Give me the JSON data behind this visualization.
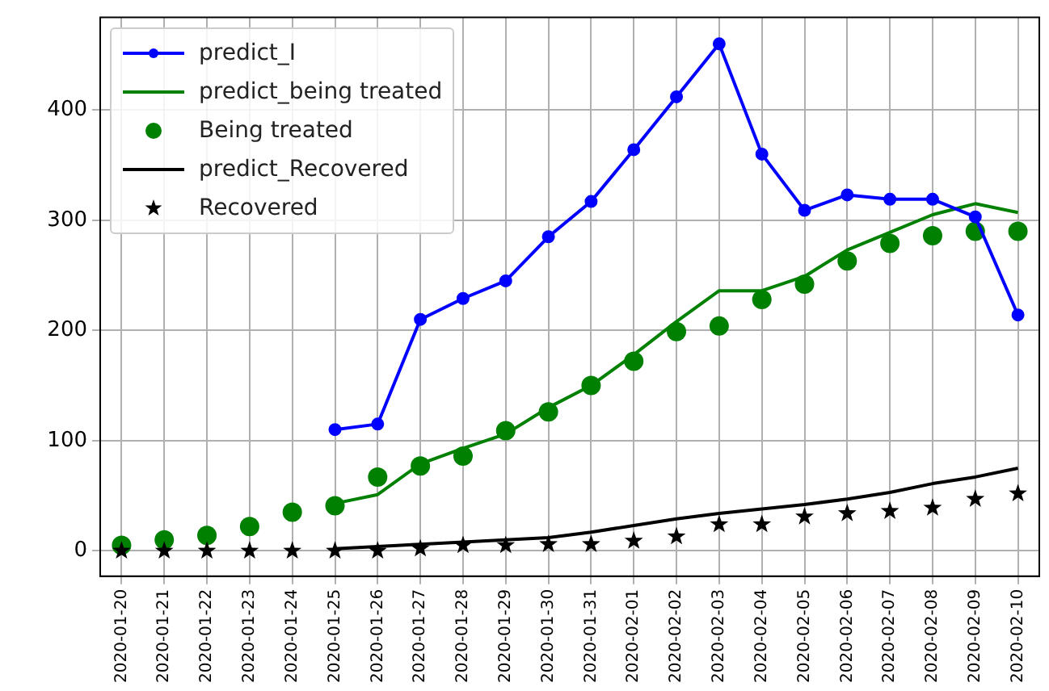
{
  "chart_data": {
    "type": "line",
    "categories": [
      "2020-01-20",
      "2020-01-21",
      "2020-01-22",
      "2020-01-23",
      "2020-01-24",
      "2020-01-25",
      "2020-01-26",
      "2020-01-27",
      "2020-01-28",
      "2020-01-29",
      "2020-01-30",
      "2020-01-31",
      "2020-02-01",
      "2020-02-02",
      "2020-02-03",
      "2020-02-04",
      "2020-02-05",
      "2020-02-06",
      "2020-02-07",
      "2020-02-08",
      "2020-02-09",
      "2020-02-10"
    ],
    "series": [
      {
        "name": "predict_I",
        "marker": "circle",
        "color": "#0000ff",
        "values": [
          null,
          null,
          null,
          null,
          null,
          110,
          115,
          210,
          229,
          245,
          285,
          317,
          364,
          412,
          460,
          360,
          309,
          323,
          319,
          319,
          303,
          214
        ]
      },
      {
        "name": "predict_being treated",
        "marker": "none",
        "color": "#008000",
        "values": [
          null,
          null,
          null,
          null,
          null,
          43,
          51,
          79,
          93,
          106,
          130,
          150,
          178,
          208,
          236,
          236,
          249,
          273,
          289,
          305,
          315,
          307
        ]
      },
      {
        "name": "Being treated",
        "type": "scatter",
        "marker": "circle",
        "color": "#008000",
        "values": [
          5,
          10,
          14,
          22,
          35,
          41,
          67,
          77,
          86,
          109,
          126,
          150,
          172,
          199,
          204,
          228,
          242,
          263,
          279,
          286,
          290,
          290
        ]
      },
      {
        "name": "predict_Recovered",
        "marker": "none",
        "color": "#000000",
        "values": [
          null,
          null,
          null,
          null,
          null,
          2,
          4,
          6,
          8,
          10,
          12,
          17,
          23,
          29,
          34,
          38,
          42,
          47,
          53,
          61,
          67,
          75
        ]
      },
      {
        "name": "Recovered",
        "type": "scatter",
        "marker": "star",
        "color": "#000000",
        "values": [
          0,
          0,
          0,
          0,
          0,
          0,
          0,
          2,
          5,
          5,
          6,
          6,
          9,
          13,
          24,
          24,
          31,
          34,
          36,
          39,
          47,
          52
        ]
      }
    ],
    "ylim": [
      -23,
      484
    ],
    "yticks": [
      0,
      100,
      200,
      300,
      400
    ],
    "grid": true,
    "legend": "top left"
  }
}
